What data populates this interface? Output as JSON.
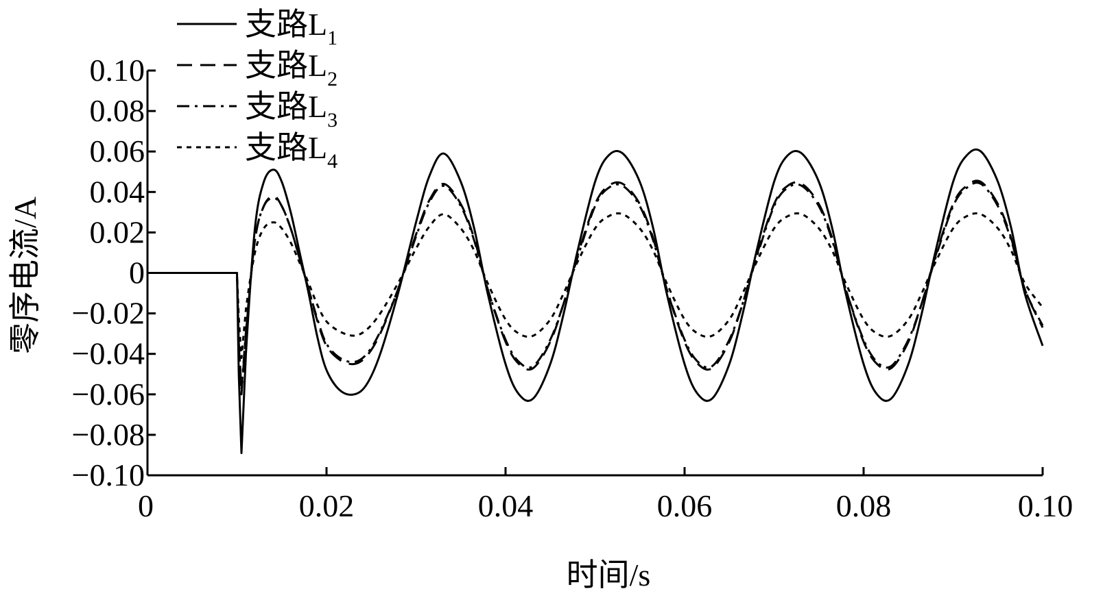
{
  "chart_data": {
    "type": "line",
    "xlabel": "时间/s",
    "ylabel": "零序电流/A",
    "xlim": [
      0,
      0.1
    ],
    "ylim": [
      -0.1,
      0.1
    ],
    "x_ticks": [
      0,
      0.02,
      0.04,
      0.06,
      0.08,
      0.1
    ],
    "x_tick_labels": [
      "0",
      "0.02",
      "0.04",
      "0.06",
      "0.08",
      "0.10"
    ],
    "y_ticks": [
      0.1,
      0.08,
      0.06,
      0.04,
      0.02,
      0,
      -0.02,
      -0.04,
      -0.06,
      -0.08,
      -0.1
    ],
    "y_tick_labels": [
      "0.10",
      "0.08",
      "0.06",
      "0.04",
      "0.02",
      "0",
      "−0.02",
      "−0.04",
      "−0.06",
      "−0.08",
      "−0.10"
    ],
    "grid": false,
    "legend_position": "top-left",
    "series": [
      {
        "name": "支路L1",
        "label_main": "支路L",
        "label_sub": "1",
        "style": "solid",
        "x": [
          0,
          0.01,
          0.0102,
          0.0105,
          0.011,
          0.012,
          0.013,
          0.0141,
          0.015,
          0.016,
          0.017,
          0.018,
          0.019,
          0.02,
          0.0215,
          0.0231,
          0.0245,
          0.026,
          0.028,
          0.03,
          0.0315,
          0.0331,
          0.035,
          0.0365,
          0.038,
          0.04,
          0.0415,
          0.0431,
          0.045,
          0.0465,
          0.048,
          0.05,
          0.0515,
          0.0531,
          0.055,
          0.0565,
          0.058,
          0.06,
          0.0615,
          0.0631,
          0.065,
          0.0665,
          0.068,
          0.07,
          0.0715,
          0.0731,
          0.075,
          0.0765,
          0.078,
          0.08,
          0.0815,
          0.0831,
          0.085,
          0.0865,
          0.088,
          0.09,
          0.0915,
          0.0931,
          0.095,
          0.0965,
          0.098,
          0.1
        ],
        "y": [
          0,
          0,
          -0.05,
          -0.089,
          -0.04,
          0.022,
          0.045,
          0.051,
          0.045,
          0.03,
          0.01,
          -0.01,
          -0.032,
          -0.048,
          -0.058,
          -0.06,
          -0.055,
          -0.04,
          -0.01,
          0.025,
          0.048,
          0.059,
          0.045,
          0.022,
          -0.01,
          -0.045,
          -0.06,
          -0.062,
          -0.045,
          -0.02,
          0.01,
          0.045,
          0.058,
          0.059,
          0.045,
          0.022,
          -0.01,
          -0.045,
          -0.06,
          -0.062,
          -0.045,
          -0.02,
          0.01,
          0.045,
          0.058,
          0.059,
          0.045,
          0.022,
          -0.01,
          -0.045,
          -0.06,
          -0.062,
          -0.045,
          -0.02,
          0.01,
          0.045,
          0.058,
          0.06,
          0.045,
          0.022,
          -0.01,
          -0.036
        ]
      },
      {
        "name": "支路L2",
        "label_main": "支路L",
        "label_sub": "2",
        "style": "dashed",
        "x": [
          0,
          0.01,
          0.0102,
          0.0105,
          0.011,
          0.012,
          0.013,
          0.0141,
          0.015,
          0.016,
          0.017,
          0.018,
          0.019,
          0.02,
          0.0215,
          0.0231,
          0.0245,
          0.026,
          0.028,
          0.03,
          0.0315,
          0.0331,
          0.035,
          0.0365,
          0.038,
          0.04,
          0.0415,
          0.0431,
          0.045,
          0.0465,
          0.048,
          0.05,
          0.0515,
          0.0531,
          0.055,
          0.0565,
          0.058,
          0.06,
          0.0615,
          0.0631,
          0.065,
          0.0665,
          0.068,
          0.07,
          0.0715,
          0.0731,
          0.075,
          0.0765,
          0.078,
          0.08,
          0.0815,
          0.0831,
          0.085,
          0.0865,
          0.088,
          0.09,
          0.0915,
          0.0931,
          0.095,
          0.0965,
          0.098,
          0.1
        ],
        "y": [
          0,
          0,
          -0.035,
          -0.06,
          -0.03,
          0.016,
          0.033,
          0.038,
          0.033,
          0.022,
          0.007,
          -0.008,
          -0.024,
          -0.036,
          -0.043,
          -0.045,
          -0.041,
          -0.03,
          -0.008,
          0.019,
          0.036,
          0.044,
          0.034,
          0.017,
          -0.008,
          -0.034,
          -0.045,
          -0.047,
          -0.034,
          -0.015,
          0.008,
          0.034,
          0.043,
          0.044,
          0.034,
          0.017,
          -0.008,
          -0.034,
          -0.045,
          -0.047,
          -0.034,
          -0.015,
          0.008,
          0.034,
          0.043,
          0.044,
          0.034,
          0.017,
          -0.008,
          -0.034,
          -0.045,
          -0.047,
          -0.034,
          -0.015,
          0.008,
          0.034,
          0.043,
          0.045,
          0.034,
          0.017,
          -0.008,
          -0.027
        ]
      },
      {
        "name": "支路L3",
        "label_main": "支路L",
        "label_sub": "3",
        "style": "dashdot",
        "x": [
          0,
          0.01,
          0.0102,
          0.0105,
          0.011,
          0.012,
          0.013,
          0.0141,
          0.015,
          0.016,
          0.017,
          0.018,
          0.019,
          0.02,
          0.0215,
          0.0231,
          0.0245,
          0.026,
          0.028,
          0.03,
          0.0315,
          0.0331,
          0.035,
          0.0365,
          0.038,
          0.04,
          0.0415,
          0.0431,
          0.045,
          0.0465,
          0.048,
          0.05,
          0.0515,
          0.0531,
          0.055,
          0.0565,
          0.058,
          0.06,
          0.0615,
          0.0631,
          0.065,
          0.0665,
          0.068,
          0.07,
          0.0715,
          0.0731,
          0.075,
          0.0765,
          0.078,
          0.08,
          0.0815,
          0.0831,
          0.085,
          0.0865,
          0.088,
          0.09,
          0.0915,
          0.0931,
          0.095,
          0.0965,
          0.098,
          0.1
        ],
        "y": [
          0,
          0,
          -0.034,
          -0.058,
          -0.029,
          0.016,
          0.033,
          0.037,
          0.033,
          0.022,
          0.007,
          -0.008,
          -0.023,
          -0.035,
          -0.042,
          -0.044,
          -0.04,
          -0.029,
          -0.008,
          0.018,
          0.035,
          0.043,
          0.033,
          0.016,
          -0.008,
          -0.033,
          -0.044,
          -0.046,
          -0.033,
          -0.015,
          0.007,
          0.033,
          0.042,
          0.043,
          0.033,
          0.016,
          -0.008,
          -0.033,
          -0.044,
          -0.046,
          -0.033,
          -0.015,
          0.007,
          0.033,
          0.042,
          0.043,
          0.033,
          0.016,
          -0.008,
          -0.033,
          -0.044,
          -0.046,
          -0.033,
          -0.015,
          0.007,
          0.033,
          0.042,
          0.044,
          0.033,
          0.016,
          -0.008,
          -0.026
        ]
      },
      {
        "name": "支路L4",
        "label_main": "支路L",
        "label_sub": "4",
        "style": "dotted",
        "x": [
          0,
          0.01,
          0.0102,
          0.0105,
          0.011,
          0.012,
          0.013,
          0.0141,
          0.015,
          0.016,
          0.017,
          0.018,
          0.019,
          0.02,
          0.0215,
          0.0231,
          0.0245,
          0.026,
          0.028,
          0.03,
          0.0315,
          0.0331,
          0.035,
          0.0365,
          0.038,
          0.04,
          0.0415,
          0.0431,
          0.045,
          0.0465,
          0.048,
          0.05,
          0.0515,
          0.0531,
          0.055,
          0.0565,
          0.058,
          0.06,
          0.0615,
          0.0631,
          0.065,
          0.0665,
          0.068,
          0.07,
          0.0715,
          0.0731,
          0.075,
          0.0765,
          0.078,
          0.08,
          0.0815,
          0.0831,
          0.085,
          0.0865,
          0.088,
          0.09,
          0.0915,
          0.0931,
          0.095,
          0.0965,
          0.098,
          0.1
        ],
        "y": [
          0,
          0,
          -0.022,
          -0.042,
          -0.018,
          0.01,
          0.022,
          0.025,
          0.022,
          0.015,
          0.005,
          -0.005,
          -0.016,
          -0.024,
          -0.029,
          -0.031,
          -0.028,
          -0.02,
          -0.005,
          0.012,
          0.023,
          0.029,
          0.022,
          0.011,
          -0.005,
          -0.023,
          -0.03,
          -0.031,
          -0.023,
          -0.01,
          0.005,
          0.022,
          0.028,
          0.029,
          0.022,
          0.011,
          -0.005,
          -0.023,
          -0.03,
          -0.031,
          -0.023,
          -0.01,
          0.005,
          0.022,
          0.028,
          0.029,
          0.022,
          0.011,
          -0.005,
          -0.023,
          -0.03,
          -0.031,
          -0.023,
          -0.01,
          0.005,
          0.022,
          0.028,
          0.029,
          0.022,
          0.011,
          -0.005,
          -0.017
        ]
      }
    ]
  }
}
